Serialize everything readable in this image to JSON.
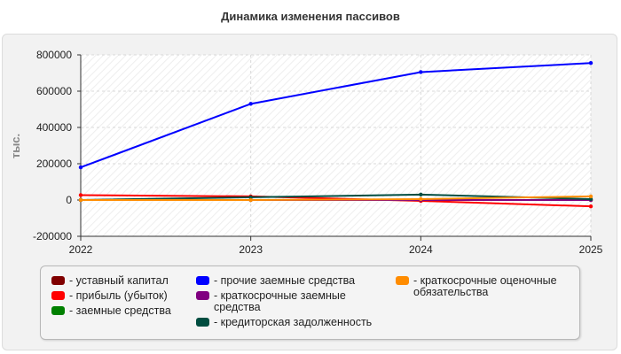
{
  "chart_data": {
    "type": "line",
    "title": "Динамика изменения пассивов",
    "ylabel": "тыс.",
    "xlabel": "",
    "x": [
      "2022",
      "2023",
      "2024",
      "2025"
    ],
    "ylim": [
      -200000,
      800000
    ],
    "yticks": [
      800000,
      600000,
      400000,
      200000,
      0,
      -200000
    ],
    "grid": true,
    "legend_position": "bottom",
    "series": [
      {
        "name": "- уставный капитал",
        "color": "#800000",
        "values": [
          10,
          10,
          10,
          10
        ]
      },
      {
        "name": "- прибыль (убыток)",
        "color": "#ff0000",
        "values": [
          27000,
          20000,
          -5000,
          -35000
        ]
      },
      {
        "name": "- заемные средства",
        "color": "#008000",
        "values": [
          0,
          0,
          0,
          0
        ]
      },
      {
        "name": "- прочие заемные средства",
        "color": "#0000ff",
        "values": [
          180000,
          530000,
          705000,
          755000
        ]
      },
      {
        "name": "- краткосрочные заемные средства",
        "color": "#800080",
        "values": [
          0,
          0,
          0,
          0
        ]
      },
      {
        "name": "- кредиторская задолженность",
        "color": "#004d40",
        "values": [
          0,
          15000,
          30000,
          5000
        ]
      },
      {
        "name": "- краткосрочные оценочные обязательства",
        "color": "#ff8c00",
        "values": [
          0,
          0,
          5000,
          20000
        ]
      }
    ]
  },
  "legend": {
    "col1": [
      {
        "label": "- уставный капитал",
        "color": "#800000"
      },
      {
        "label": "- прибыль (убыток)",
        "color": "#ff0000"
      },
      {
        "label": "- заемные средства",
        "color": "#008000"
      }
    ],
    "col2": [
      {
        "label": "- прочие заемные средства",
        "color": "#0000ff"
      },
      {
        "label": "- краткосрочные заемные",
        "label2": "средства",
        "color": "#800080"
      },
      {
        "label": "- кредиторская задолженность",
        "color": "#004d40"
      }
    ],
    "col3": [
      {
        "label": "- краткосрочные оценочные",
        "label2": "обязательства",
        "color": "#ff8c00"
      }
    ]
  }
}
